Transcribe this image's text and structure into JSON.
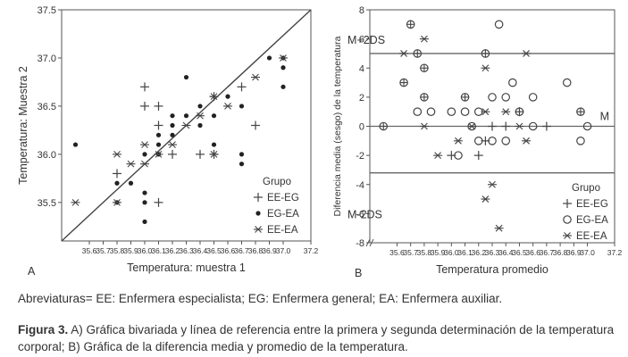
{
  "chart_data": [
    {
      "type": "scatter",
      "panel_label": "A",
      "xlabel": "Temperatura: muestra 1",
      "ylabel": "Temperatura: Muestra 2",
      "xlim": [
        35.4,
        37.2
      ],
      "ylim": [
        35.1,
        37.5
      ],
      "xticks": [
        "35.6",
        "35.7",
        "35.8",
        "35.9",
        "36.0",
        "36.1",
        "36.2",
        "36.3",
        "36.4",
        "36.5",
        "36.6",
        "36.7",
        "36.8",
        "36.9",
        "37.0",
        "37.2"
      ],
      "yticks": [
        "35.5",
        "36.0",
        "36.5",
        "37.0",
        "37.5"
      ],
      "reference_line": {
        "from": [
          35.4,
          35.1
        ],
        "to": [
          37.2,
          37.5
        ]
      },
      "legend": {
        "title": "Grupo",
        "position": "bottom-right",
        "entries": [
          "EE-EG",
          "EG-EA",
          "EE-EA"
        ]
      },
      "series": [
        {
          "name": "EE-EG",
          "marker": "plus",
          "x": [
            36.0,
            36.0,
            36.1,
            36.1,
            36.2,
            36.4,
            36.5,
            36.5,
            36.7,
            36.8,
            35.8,
            36.1
          ],
          "y": [
            36.7,
            36.5,
            36.5,
            36.3,
            36.0,
            36.0,
            36.0,
            36.6,
            36.7,
            36.3,
            35.8,
            35.5
          ]
        },
        {
          "name": "EG-EA",
          "marker": "dot",
          "x": [
            35.5,
            35.8,
            35.8,
            35.9,
            36.0,
            36.0,
            36.0,
            36.0,
            36.1,
            36.1,
            36.1,
            36.2,
            36.2,
            36.2,
            36.3,
            36.3,
            36.4,
            36.4,
            36.5,
            36.5,
            36.6,
            36.7,
            36.7,
            36.9,
            37.0,
            37.0,
            37.0,
            36.7
          ],
          "y": [
            36.1,
            35.5,
            35.7,
            35.7,
            35.5,
            35.6,
            35.3,
            36.0,
            36.0,
            36.1,
            36.2,
            36.3,
            36.4,
            36.2,
            36.4,
            36.8,
            36.5,
            36.3,
            36.4,
            36.1,
            36.6,
            36.5,
            36.0,
            37.0,
            37.0,
            36.9,
            36.7,
            35.9
          ]
        },
        {
          "name": "EE-EA",
          "marker": "asterisk",
          "x": [
            35.5,
            35.8,
            35.8,
            35.9,
            36.0,
            36.0,
            36.1,
            36.2,
            36.3,
            36.4,
            36.5,
            36.5,
            36.6,
            36.8,
            37.0
          ],
          "y": [
            35.5,
            36.0,
            35.5,
            35.9,
            36.1,
            35.9,
            36.0,
            36.1,
            36.3,
            36.4,
            36.6,
            36.0,
            36.5,
            36.8,
            37.0
          ]
        }
      ]
    },
    {
      "type": "scatter",
      "panel_label": "B",
      "xlabel": "Temperatura promedio",
      "ylabel": "Diferencia media (sesgo) de la temperatura",
      "xlim": [
        35.4,
        37.2
      ],
      "ylim": [
        -8,
        8
      ],
      "xticks": [
        "35.6",
        "35.7",
        "35.8",
        "35.9",
        "36.0",
        "36.1",
        "36.2",
        "36.3",
        "36.4",
        "36.5",
        "36.6",
        "36.7",
        "36.8",
        "36.9",
        "37.0",
        "37.2"
      ],
      "yticks": [
        "-8",
        "-6",
        "-4",
        "-2",
        "0",
        "2",
        "4",
        "6",
        "8"
      ],
      "reference_lines": [
        {
          "label": "M+2DS",
          "y": 5
        },
        {
          "label": "M",
          "y": 0
        },
        {
          "label": "M-2DS",
          "y": -3.2
        }
      ],
      "legend": {
        "title": "Grupo",
        "position": "bottom-right",
        "entries": [
          "EE-EG",
          "EG-EA",
          "EE-EA"
        ]
      },
      "series": [
        {
          "name": "EE-EG",
          "marker": "plus",
          "x": [
            36.0,
            36.2,
            36.25,
            36.3,
            36.4,
            36.5,
            36.7
          ],
          "y": [
            -2,
            -2,
            -1,
            0,
            0,
            1,
            0
          ]
        },
        {
          "name": "EG-EA",
          "marker": "circle",
          "x": [
            35.5,
            35.65,
            35.7,
            35.75,
            35.75,
            35.8,
            35.8,
            35.85,
            36.0,
            36.05,
            36.1,
            36.1,
            36.15,
            36.2,
            36.2,
            36.25,
            36.3,
            36.3,
            36.35,
            36.4,
            36.4,
            36.45,
            36.5,
            36.6,
            36.6,
            36.85,
            36.95,
            36.95,
            37.0
          ],
          "y": [
            0,
            3,
            7,
            5,
            1,
            4,
            2,
            1,
            1,
            -2,
            2,
            1,
            0,
            -1,
            1,
            5,
            2,
            -1,
            7,
            2,
            -1,
            3,
            1,
            0,
            2,
            3,
            1,
            -1,
            0
          ]
        },
        {
          "name": "EE-EA",
          "marker": "asterisk",
          "x": [
            35.65,
            35.8,
            35.8,
            35.9,
            36.05,
            36.15,
            36.25,
            36.25,
            36.25,
            36.3,
            36.35,
            36.4,
            36.5,
            36.55,
            36.55
          ],
          "y": [
            5,
            6,
            0,
            -2,
            -1,
            0,
            4,
            1,
            -5,
            -4,
            -7,
            1,
            0,
            5,
            -1
          ]
        }
      ]
    }
  ],
  "captions": {
    "abbreviations": "Abreviaturas= EE: Enfermera especialista; EG: Enfermera general; EA: Enfermera auxiliar.",
    "figure_label": "Figura 3.",
    "figure_text_1": " A) Gráfica bivariada y línea de referencia entre la primera y segunda determinación de la temperatura corporal; B) Gráfica de la diferencia media y promedio de la temperatura."
  }
}
